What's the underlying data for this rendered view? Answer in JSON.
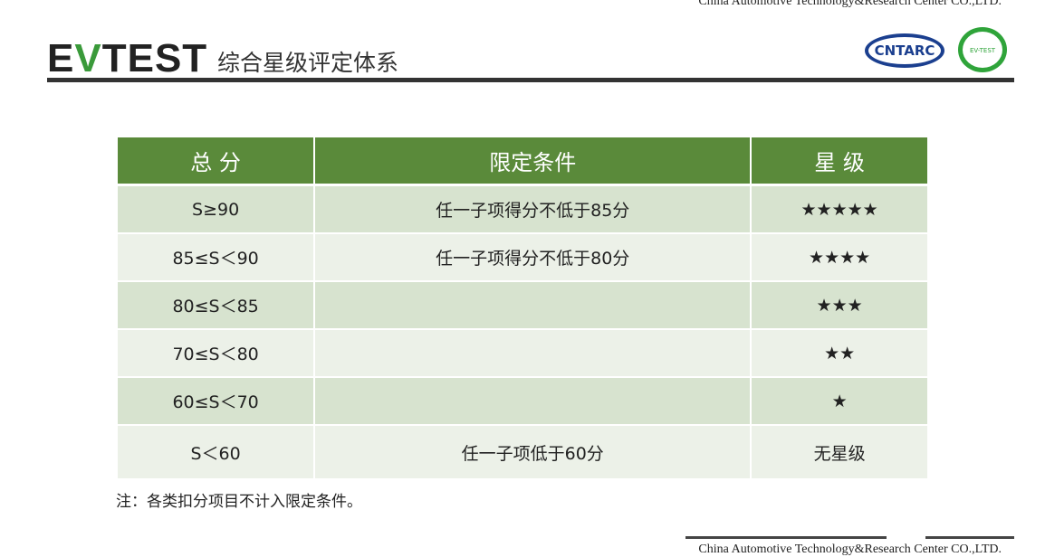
{
  "header": {
    "company": "China Automotive Technology&Research Center CO.,LTD.",
    "brand_pre": "E",
    "brand_v": "V",
    "brand_post": "TEST",
    "title": "综合星级评定体系",
    "logo_cnt": "CNTARC",
    "logo_ev": "EV-TEST"
  },
  "table": {
    "headers": [
      "总 分",
      "限定条件",
      "星 级"
    ],
    "rows": [
      [
        "S≥90",
        "任一子项得分不低于85分",
        "★★★★★"
      ],
      [
        "85≤S＜90",
        "任一子项得分不低于80分",
        "★★★★"
      ],
      [
        "80≤S＜85",
        "",
        "★★★"
      ],
      [
        "70≤S＜80",
        "",
        "★★"
      ],
      [
        "60≤S＜70",
        "",
        "★"
      ],
      [
        "S＜60",
        "任一子项低于60分",
        "无星级"
      ]
    ]
  },
  "note": "注：各类扣分项目不计入限定条件。",
  "footer": {
    "company": "China Automotive Technology&Research Center CO.,LTD."
  },
  "colors": {
    "header_green": "#5a8a3a",
    "row_dark": "#d7e3cf",
    "row_light": "#ecf1e8"
  }
}
